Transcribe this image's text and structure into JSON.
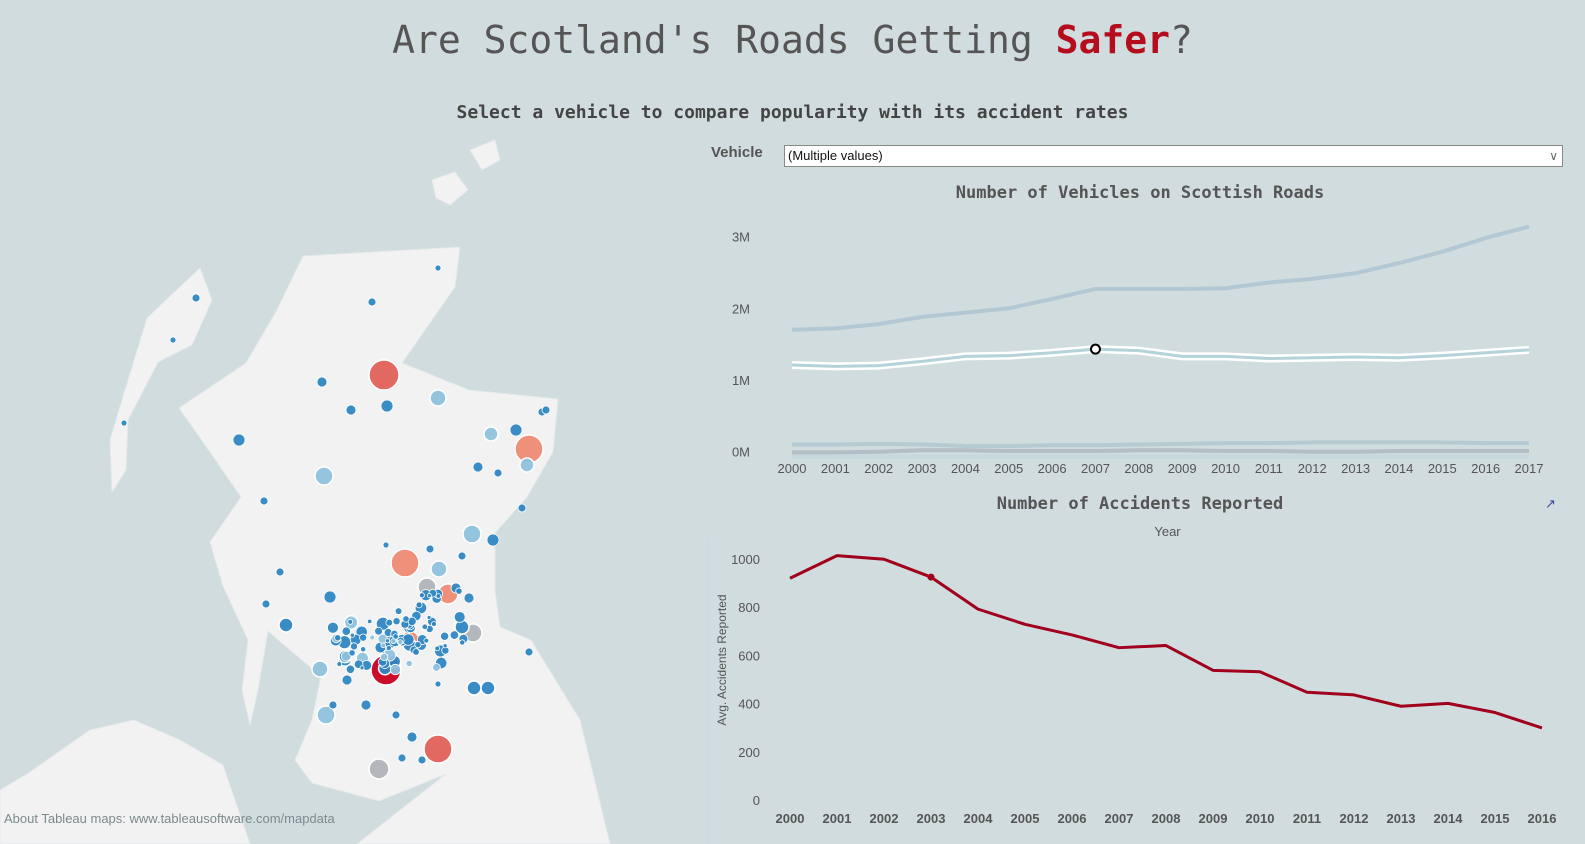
{
  "header": {
    "title_prefix": "Are Scotland's Roads Getting ",
    "title_accent": "Safer",
    "title_suffix": "?",
    "subtitle": "Select a vehicle to compare popularity with its accident rates"
  },
  "filter": {
    "label": "Vehicle",
    "selected_value": "(Multiple values)",
    "chevron_icon": "chevron-down-icon"
  },
  "map": {
    "credit": "About Tableau maps: www.tableausoftware.com/mapdata",
    "colors": {
      "water": "#d0dcde",
      "land": "#f2f2f2",
      "dark_blue": "#2f86c2",
      "light_blue": "#8fc1dd",
      "grey": "#b0b4b8",
      "salmon": "#ee8b73",
      "red": "#e0605a",
      "crimson": "#c8001f"
    }
  },
  "chart_data": [
    {
      "type": "line",
      "title": "Number of Vehicles on Scottish Roads",
      "x": [
        2000,
        2001,
        2002,
        2003,
        2004,
        2005,
        2006,
        2007,
        2008,
        2009,
        2010,
        2011,
        2012,
        2013,
        2014,
        2015,
        2016,
        2017
      ],
      "y_ticks": [
        "0M",
        "1M",
        "2M",
        "3M"
      ],
      "y_tick_values": [
        0,
        1,
        2,
        3
      ],
      "ylim": [
        -0.1,
        3.2
      ],
      "y_unit": "millions",
      "highlighted_series": 1,
      "highlighted_point": {
        "x": 2007,
        "y": 1.43
      },
      "series": [
        {
          "color": "#b4c8d4",
          "values": [
            1.7,
            1.72,
            1.78,
            1.88,
            1.94,
            2.0,
            2.13,
            2.27,
            2.27,
            2.27,
            2.28,
            2.36,
            2.41,
            2.49,
            2.63,
            2.79,
            2.98,
            3.14
          ]
        },
        {
          "color": "#b4d2da",
          "values": [
            1.21,
            1.19,
            1.2,
            1.26,
            1.33,
            1.34,
            1.38,
            1.43,
            1.41,
            1.33,
            1.33,
            1.3,
            1.31,
            1.32,
            1.31,
            1.34,
            1.38,
            1.42
          ]
        },
        {
          "color": "#b6cad4",
          "values": [
            0.1,
            0.1,
            0.11,
            0.1,
            0.08,
            0.08,
            0.09,
            0.09,
            0.1,
            0.11,
            0.12,
            0.12,
            0.13,
            0.13,
            0.13,
            0.13,
            0.12,
            0.12
          ]
        },
        {
          "color": "#b3bec6",
          "values": [
            -0.01,
            -0.01,
            0.0,
            0.02,
            0.02,
            0.01,
            0.01,
            0.01,
            0.02,
            0.02,
            0.01,
            0.01,
            0.0,
            0.0,
            0.01,
            0.01,
            0.01,
            0.01
          ]
        },
        {
          "color": "#c4d8de",
          "values": [
            -0.07,
            -0.07,
            -0.07,
            -0.07,
            -0.07,
            -0.07,
            -0.07,
            -0.07,
            -0.07,
            -0.07,
            -0.07,
            -0.07,
            -0.07,
            -0.07,
            -0.07,
            -0.07,
            -0.07,
            -0.07
          ]
        }
      ],
      "grid": false
    },
    {
      "type": "line",
      "title": "Number of Accidents Reported",
      "xlabel": "Year",
      "ylabel": "Avg. Accidents Reported",
      "x": [
        2000,
        2001,
        2002,
        2003,
        2004,
        2005,
        2006,
        2007,
        2008,
        2009,
        2010,
        2011,
        2012,
        2013,
        2014,
        2015,
        2016
      ],
      "y_ticks": [
        0,
        200,
        400,
        600,
        800,
        1000
      ],
      "ylim": [
        0,
        1060
      ],
      "series": [
        {
          "color": "#a0001c",
          "values": [
            920,
            1014,
            999,
            925,
            792,
            729,
            685,
            632,
            641,
            538,
            532,
            447,
            436,
            389,
            401,
            363,
            299
          ]
        }
      ],
      "highlighted_point": {
        "x": 2003,
        "y": 925
      },
      "grid": false,
      "external_link_icon": "external-link-icon"
    }
  ]
}
